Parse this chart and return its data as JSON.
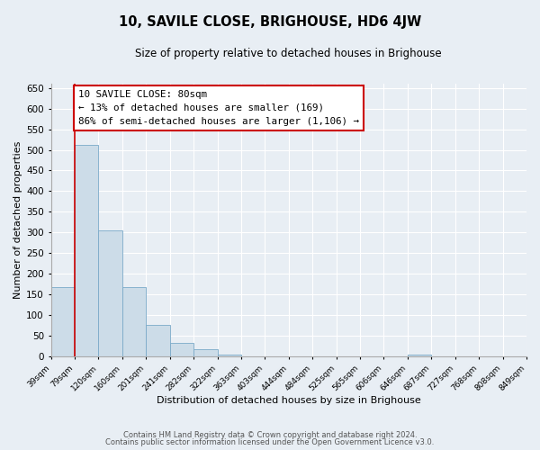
{
  "title": "10, SAVILE CLOSE, BRIGHOUSE, HD6 4JW",
  "subtitle": "Size of property relative to detached houses in Brighouse",
  "xlabel": "Distribution of detached houses by size in Brighouse",
  "ylabel": "Number of detached properties",
  "bar_values": [
    169,
    513,
    305,
    169,
    76,
    32,
    18,
    4,
    0,
    0,
    0,
    0,
    0,
    0,
    0,
    5,
    0,
    0,
    0,
    0
  ],
  "bin_labels": [
    "39sqm",
    "79sqm",
    "120sqm",
    "160sqm",
    "201sqm",
    "241sqm",
    "282sqm",
    "322sqm",
    "363sqm",
    "403sqm",
    "444sqm",
    "484sqm",
    "525sqm",
    "565sqm",
    "606sqm",
    "646sqm",
    "687sqm",
    "727sqm",
    "768sqm",
    "808sqm",
    "849sqm"
  ],
  "bar_color": "#ccdce8",
  "bar_edge_color": "#7aaac8",
  "red_line_x": 1,
  "ylim": [
    0,
    660
  ],
  "yticks": [
    0,
    50,
    100,
    150,
    200,
    250,
    300,
    350,
    400,
    450,
    500,
    550,
    600,
    650
  ],
  "annotation_title": "10 SAVILE CLOSE: 80sqm",
  "annotation_line1": "← 13% of detached houses are smaller (169)",
  "annotation_line2": "86% of semi-detached houses are larger (1,106) →",
  "annotation_box_edge": "#cc0000",
  "footer_line1": "Contains HM Land Registry data © Crown copyright and database right 2024.",
  "footer_line2": "Contains public sector information licensed under the Open Government Licence v3.0.",
  "background_color": "#e8eef4",
  "plot_bg_color": "#e8eef4",
  "grid_color": "#ffffff"
}
